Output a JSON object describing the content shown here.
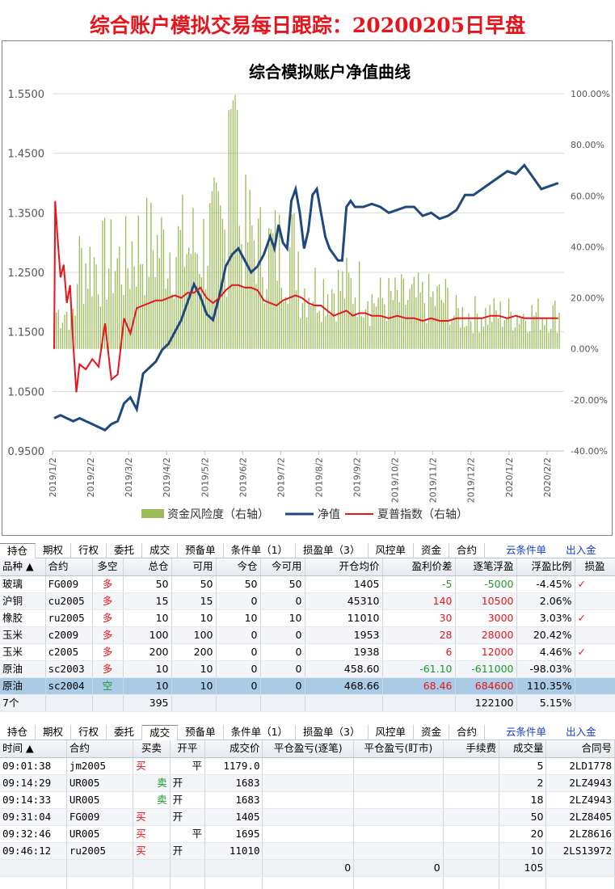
{
  "title": "综合账户模拟交易每日跟踪：20200205日早盘",
  "chart_data": {
    "type": "line",
    "title": "综合模拟账户净值曲线",
    "x_ticks": [
      "2019/1/2",
      "2019/2/2",
      "2019/3/2",
      "2019/4/2",
      "2019/5/2",
      "2019/6/2",
      "2019/7/2",
      "2019/8/2",
      "2019/9/2",
      "2019/10/2",
      "2019/11/2",
      "2019/12/2",
      "2020/1/2",
      "2020/2/2"
    ],
    "y_left": {
      "min": 0.95,
      "max": 1.55,
      "ticks": [
        "0.9500",
        "1.0500",
        "1.1500",
        "1.2500",
        "1.3500",
        "1.4500",
        "1.5500"
      ]
    },
    "y_right": {
      "min": -0.4,
      "max": 1.0,
      "ticks": [
        "-40.00%",
        "-20.00%",
        "0.00%",
        "20.00%",
        "40.00%",
        "60.00%",
        "80.00%",
        "100.00%"
      ]
    },
    "legend": [
      "资金风险度（右轴）",
      "净值",
      "夏普指数（右轴）"
    ],
    "legend_position": "bottom",
    "colors": {
      "risk": "#9bbb59",
      "nav": "#1f497d",
      "sharpe": "#e8141c"
    },
    "nav": [
      [
        0,
        1.005
      ],
      [
        0.3,
        1.01
      ],
      [
        0.6,
        1.005
      ],
      [
        0.9,
        1.0
      ],
      [
        1.2,
        1.005
      ],
      [
        1.5,
        1.0
      ],
      [
        1.8,
        0.995
      ],
      [
        2.1,
        0.99
      ],
      [
        2.4,
        0.985
      ],
      [
        2.7,
        0.995
      ],
      [
        3.0,
        1.0
      ],
      [
        3.3,
        1.03
      ],
      [
        3.6,
        1.04
      ],
      [
        3.9,
        1.02
      ],
      [
        4.2,
        1.08
      ],
      [
        4.5,
        1.09
      ],
      [
        4.8,
        1.1
      ],
      [
        5.1,
        1.12
      ],
      [
        5.4,
        1.13
      ],
      [
        5.7,
        1.15
      ],
      [
        6.0,
        1.17
      ],
      [
        6.3,
        1.2
      ],
      [
        6.6,
        1.23
      ],
      [
        6.9,
        1.21
      ],
      [
        7.2,
        1.18
      ],
      [
        7.5,
        1.17
      ],
      [
        7.8,
        1.21
      ],
      [
        8.1,
        1.26
      ],
      [
        8.4,
        1.28
      ],
      [
        8.7,
        1.29
      ],
      [
        9.0,
        1.27
      ],
      [
        9.3,
        1.25
      ],
      [
        9.6,
        1.26
      ],
      [
        9.9,
        1.28
      ],
      [
        10.2,
        1.31
      ],
      [
        10.4,
        1.29
      ],
      [
        10.6,
        1.33
      ],
      [
        10.8,
        1.3
      ],
      [
        11.0,
        1.29
      ],
      [
        11.2,
        1.37
      ],
      [
        11.4,
        1.39
      ],
      [
        11.6,
        1.35
      ],
      [
        11.8,
        1.29
      ],
      [
        12.0,
        1.32
      ],
      [
        12.2,
        1.38
      ],
      [
        12.4,
        1.39
      ],
      [
        12.6,
        1.35
      ],
      [
        12.8,
        1.31
      ],
      [
        13.0,
        1.29
      ],
      [
        13.2,
        1.28
      ],
      [
        13.4,
        1.27
      ],
      [
        13.6,
        1.27
      ],
      [
        13.8,
        1.36
      ],
      [
        14.0,
        1.37
      ],
      [
        14.2,
        1.36
      ],
      [
        14.6,
        1.36
      ],
      [
        15.0,
        1.365
      ],
      [
        15.4,
        1.36
      ],
      [
        15.8,
        1.35
      ],
      [
        16.2,
        1.355
      ],
      [
        16.6,
        1.36
      ],
      [
        17.0,
        1.36
      ],
      [
        17.4,
        1.345
      ],
      [
        17.8,
        1.35
      ],
      [
        18.2,
        1.34
      ],
      [
        18.6,
        1.345
      ],
      [
        19.0,
        1.355
      ],
      [
        19.4,
        1.38
      ],
      [
        19.8,
        1.38
      ],
      [
        20.2,
        1.39
      ],
      [
        20.6,
        1.4
      ],
      [
        21.0,
        1.41
      ],
      [
        21.4,
        1.42
      ],
      [
        21.8,
        1.415
      ],
      [
        22.2,
        1.43
      ],
      [
        22.6,
        1.41
      ],
      [
        23.0,
        1.39
      ],
      [
        23.4,
        1.395
      ],
      [
        23.8,
        1.4
      ]
    ],
    "sharpe": [
      [
        0,
        0
      ],
      [
        0.05,
        0.58
      ],
      [
        0.15,
        0.45
      ],
      [
        0.3,
        0.28
      ],
      [
        0.45,
        0.33
      ],
      [
        0.6,
        0.18
      ],
      [
        0.75,
        0.25
      ],
      [
        0.9,
        0.02
      ],
      [
        1.05,
        -0.17
      ],
      [
        1.2,
        -0.06
      ],
      [
        1.5,
        -0.08
      ],
      [
        1.8,
        -0.04
      ],
      [
        2.1,
        -0.07
      ],
      [
        2.4,
        0.1
      ],
      [
        2.7,
        -0.12
      ],
      [
        3.0,
        -0.1
      ],
      [
        3.3,
        0.12
      ],
      [
        3.6,
        0.06
      ],
      [
        3.9,
        0.16
      ],
      [
        4.2,
        0.17
      ],
      [
        4.5,
        0.18
      ],
      [
        4.8,
        0.19
      ],
      [
        5.1,
        0.19
      ],
      [
        5.4,
        0.2
      ],
      [
        5.7,
        0.21
      ],
      [
        6.0,
        0.2
      ],
      [
        6.3,
        0.22
      ],
      [
        6.6,
        0.22
      ],
      [
        6.9,
        0.24
      ],
      [
        7.2,
        0.2
      ],
      [
        7.5,
        0.18
      ],
      [
        7.8,
        0.2
      ],
      [
        8.1,
        0.23
      ],
      [
        8.4,
        0.25
      ],
      [
        8.7,
        0.25
      ],
      [
        9.0,
        0.24
      ],
      [
        9.3,
        0.24
      ],
      [
        9.6,
        0.23
      ],
      [
        9.9,
        0.19
      ],
      [
        10.2,
        0.18
      ],
      [
        10.5,
        0.17
      ],
      [
        10.8,
        0.19
      ],
      [
        11.1,
        0.2
      ],
      [
        11.4,
        0.21
      ],
      [
        11.7,
        0.2
      ],
      [
        12.0,
        0.18
      ],
      [
        12.3,
        0.17
      ],
      [
        12.6,
        0.17
      ],
      [
        12.9,
        0.15
      ],
      [
        13.2,
        0.13
      ],
      [
        13.5,
        0.14
      ],
      [
        13.8,
        0.15
      ],
      [
        14.1,
        0.13
      ],
      [
        14.4,
        0.14
      ],
      [
        14.7,
        0.14
      ],
      [
        15.0,
        0.13
      ],
      [
        15.4,
        0.13
      ],
      [
        15.8,
        0.12
      ],
      [
        16.2,
        0.13
      ],
      [
        16.6,
        0.12
      ],
      [
        17.0,
        0.12
      ],
      [
        17.4,
        0.11
      ],
      [
        17.8,
        0.12
      ],
      [
        18.2,
        0.11
      ],
      [
        18.6,
        0.11
      ],
      [
        19.0,
        0.12
      ],
      [
        19.4,
        0.12
      ],
      [
        19.8,
        0.12
      ],
      [
        20.2,
        0.12
      ],
      [
        20.6,
        0.13
      ],
      [
        21.0,
        0.13
      ],
      [
        21.4,
        0.12
      ],
      [
        21.8,
        0.13
      ],
      [
        22.2,
        0.12
      ],
      [
        22.6,
        0.12
      ],
      [
        23.0,
        0.12
      ],
      [
        23.4,
        0.12
      ],
      [
        23.8,
        0.12
      ]
    ]
  },
  "tabs1": [
    "持仓",
    "期权",
    "行权",
    "委托",
    "成交",
    "预备单",
    "条件单（1）",
    "损盈单（3）",
    "风控单",
    "资金",
    "合约"
  ],
  "tabs1_links": [
    "云条件单",
    "出入金"
  ],
  "pos_headers": [
    "品种 ▲",
    "合约",
    "多空",
    "总仓",
    "可用",
    "今仓",
    "今可用",
    "开仓均价",
    "盈利价差",
    "逐笔浮盈",
    "浮盈比例",
    "损盈"
  ],
  "positions": [
    {
      "name": "玻璃",
      "code": "FG009",
      "dir": "多",
      "total": "50",
      "avail": "50",
      "today": "50",
      "today_avail": "50",
      "avg": "1405",
      "diff": "-5",
      "float": "-5000",
      "ratio": "-4.45%",
      "mark": "✓",
      "diffc": "green",
      "floatc": "green"
    },
    {
      "name": "沪铜",
      "code": "cu2005",
      "dir": "多",
      "total": "15",
      "avail": "15",
      "today": "0",
      "today_avail": "0",
      "avg": "45310",
      "diff": "140",
      "float": "10500",
      "ratio": "2.06%",
      "mark": "",
      "diffc": "red",
      "floatc": "red"
    },
    {
      "name": "橡胶",
      "code": "ru2005",
      "dir": "多",
      "total": "10",
      "avail": "10",
      "today": "10",
      "today_avail": "10",
      "avg": "11010",
      "diff": "30",
      "float": "3000",
      "ratio": "3.03%",
      "mark": "✓",
      "diffc": "red",
      "floatc": "red"
    },
    {
      "name": "玉米",
      "code": "c2009",
      "dir": "多",
      "total": "100",
      "avail": "100",
      "today": "0",
      "today_avail": "0",
      "avg": "1953",
      "diff": "28",
      "float": "28000",
      "ratio": "20.42%",
      "mark": "",
      "diffc": "red",
      "floatc": "red"
    },
    {
      "name": "玉米",
      "code": "c2005",
      "dir": "多",
      "total": "200",
      "avail": "200",
      "today": "0",
      "today_avail": "0",
      "avg": "1938",
      "diff": "6",
      "float": "12000",
      "ratio": "4.46%",
      "mark": "✓",
      "diffc": "red",
      "floatc": "red"
    },
    {
      "name": "原油",
      "code": "sc2003",
      "dir": "多",
      "total": "10",
      "avail": "10",
      "today": "0",
      "today_avail": "0",
      "avg": "458.60",
      "diff": "-61.10",
      "float": "-611000",
      "ratio": "-98.03%",
      "mark": "",
      "diffc": "green",
      "floatc": "green"
    },
    {
      "name": "原油",
      "code": "sc2004",
      "dir": "空",
      "total": "10",
      "avail": "10",
      "today": "0",
      "today_avail": "0",
      "avg": "468.66",
      "diff": "68.46",
      "float": "684600",
      "ratio": "110.35%",
      "mark": "",
      "diffc": "red",
      "floatc": "red"
    }
  ],
  "pos_footer": {
    "count": "7个",
    "total": "395",
    "float": "122100",
    "ratio": "5.15%"
  },
  "tabs2": [
    "持仓",
    "期权",
    "行权",
    "委托",
    "成交",
    "预备单",
    "条件单（1）",
    "损盈单（3）",
    "风控单",
    "资金",
    "合约"
  ],
  "tabs2_links": [
    "云条件单",
    "出入金"
  ],
  "trade_headers": [
    "时间 ▲",
    "合约",
    "买卖",
    "开平",
    "成交价",
    "平仓盈亏(逐笔)",
    "平仓盈亏(盯市)",
    "手续费",
    "成交量",
    "合同号"
  ],
  "trades": [
    {
      "time": "09:01:38",
      "code": "jm2005",
      "bs": "买",
      "oc": "平",
      "price": "1179.0",
      "qty": "5",
      "id": "2LD1778",
      "bsc": "red"
    },
    {
      "time": "09:14:29",
      "code": "UR005",
      "bs": "卖",
      "oc": "开",
      "price": "1683",
      "qty": "2",
      "id": "2LZ4943",
      "bsc": "green"
    },
    {
      "time": "09:14:33",
      "code": "UR005",
      "bs": "卖",
      "oc": "开",
      "price": "1683",
      "qty": "18",
      "id": "2LZ4943",
      "bsc": "green"
    },
    {
      "time": "09:31:04",
      "code": "FG009",
      "bs": "买",
      "oc": "开",
      "price": "1405",
      "qty": "50",
      "id": "2LZ8405",
      "bsc": "red"
    },
    {
      "time": "09:32:46",
      "code": "UR005",
      "bs": "买",
      "oc": "平",
      "price": "1695",
      "qty": "20",
      "id": "2LZ8616",
      "bsc": "red"
    },
    {
      "time": "09:46:12",
      "code": "ru2005",
      "bs": "买",
      "oc": "开",
      "price": "11010",
      "qty": "10",
      "id": "2LS13972",
      "bsc": "red"
    }
  ],
  "trade_footer": {
    "pnl1": "0",
    "pnl2": "0",
    "qty": "105"
  }
}
